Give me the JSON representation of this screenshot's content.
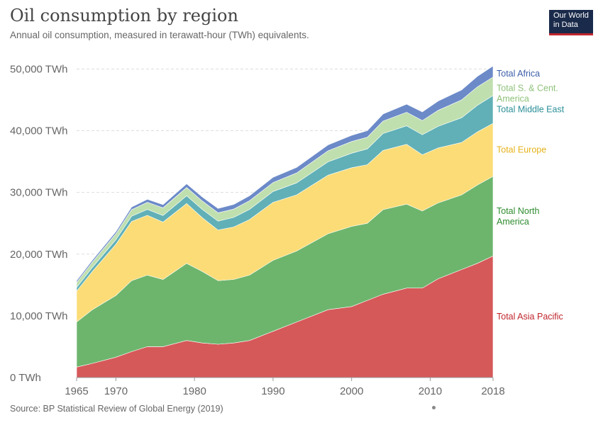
{
  "header": {
    "title": "Oil consumption by region",
    "subtitle": "Annual oil consumption, measured in terawatt-hour (TWh) equivalents.",
    "logo_line1": "Our World",
    "logo_line2": "in Data"
  },
  "footer": {
    "source": "Source: BP Statistical Review of Global Energy (2019)"
  },
  "chart_data": {
    "type": "area",
    "stacked": true,
    "ylim": [
      0,
      52000
    ],
    "xlim": [
      1965,
      2018
    ],
    "x_ticks": [
      1965,
      1970,
      1980,
      1990,
      2000,
      2010,
      2018
    ],
    "y_ticks": [
      {
        "value": 0,
        "label": "0 TWh"
      },
      {
        "value": 10000,
        "label": "10,000 TWh"
      },
      {
        "value": 20000,
        "label": "20,000 TWh"
      },
      {
        "value": 30000,
        "label": "30,000 TWh"
      },
      {
        "value": 40000,
        "label": "40,000 TWh"
      },
      {
        "value": 50000,
        "label": "50,000 TWh"
      }
    ],
    "grid": true,
    "key_years": [
      1965,
      1967,
      1970,
      1972,
      1974,
      1976,
      1979,
      1981,
      1983,
      1985,
      1987,
      1990,
      1993,
      1997,
      2000,
      2002,
      2004,
      2007,
      2009,
      2011,
      2014,
      2016,
      2018
    ],
    "series": [
      {
        "name": "Total Asia Pacific",
        "color": "#d6595a",
        "values": [
          1700,
          2300,
          3300,
          4200,
          5000,
          5000,
          6000,
          5600,
          5400,
          5600,
          6000,
          7500,
          9000,
          11000,
          11500,
          12500,
          13500,
          14500,
          14500,
          16000,
          17500,
          18500,
          19700
        ]
      },
      {
        "name": "Total North America",
        "color": "#6db56d",
        "values": [
          7300,
          8700,
          10000,
          11500,
          11600,
          10900,
          12500,
          11600,
          10300,
          10300,
          10600,
          11500,
          11500,
          12300,
          13000,
          12500,
          13700,
          13600,
          12500,
          12300,
          12100,
          12700,
          12900
        ]
      },
      {
        "name": "Total Europe",
        "color": "#fbdc76",
        "values": [
          5000,
          6200,
          8300,
          9600,
          9700,
          9300,
          9700,
          8700,
          8200,
          8500,
          9000,
          9400,
          9100,
          9500,
          9500,
          9500,
          9600,
          9700,
          9100,
          8900,
          8500,
          8600,
          8600
        ]
      },
      {
        "name": "Total Middle East",
        "color": "#61b0b7",
        "values": [
          600,
          650,
          750,
          850,
          950,
          1050,
          1250,
          1350,
          1450,
          1550,
          1650,
          1750,
          1950,
          2150,
          2350,
          2550,
          2750,
          3000,
          3250,
          3500,
          4000,
          4300,
          4500
        ]
      },
      {
        "name": "Total S. & Cent. America",
        "color": "#bfdfae",
        "values": [
          800,
          850,
          950,
          1050,
          1150,
          1250,
          1350,
          1350,
          1350,
          1350,
          1400,
          1450,
          1600,
          1800,
          1900,
          1900,
          2000,
          2200,
          2300,
          2600,
          2900,
          3000,
          3000
        ]
      },
      {
        "name": "Total Africa",
        "color": "#6c8ac8",
        "values": [
          300,
          320,
          360,
          420,
          480,
          520,
          600,
          650,
          700,
          750,
          800,
          850,
          900,
          950,
          1000,
          1050,
          1150,
          1300,
          1400,
          1500,
          1600,
          1700,
          1800
        ]
      }
    ]
  }
}
